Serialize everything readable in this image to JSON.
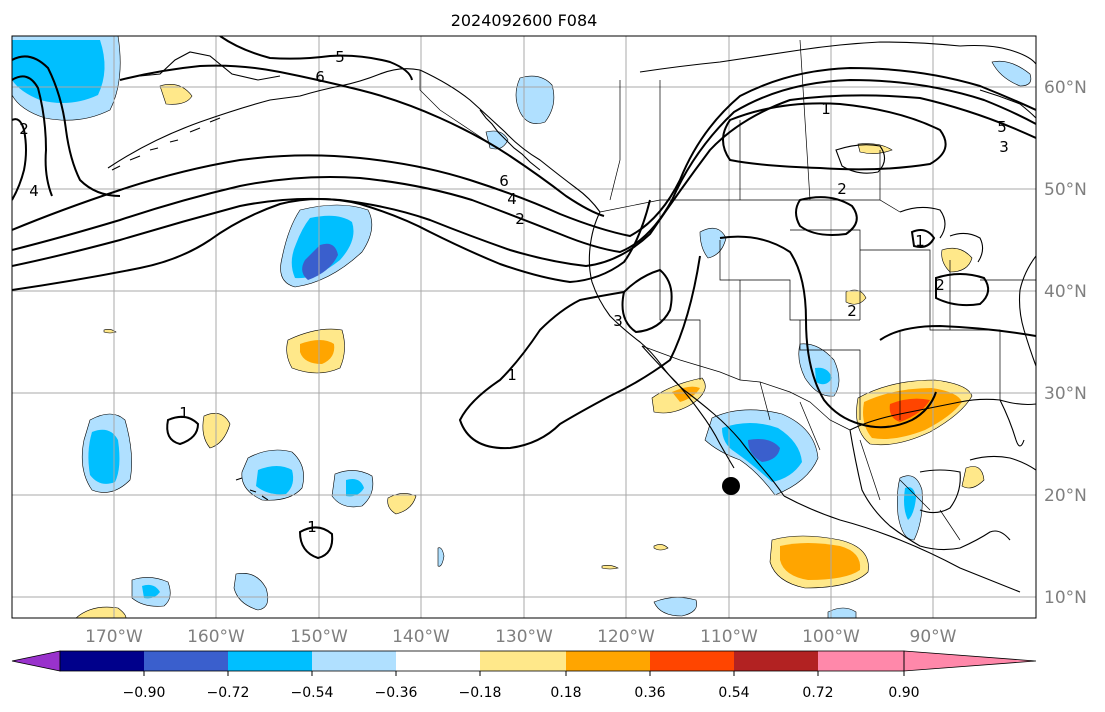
{
  "title": "2024092600 F084",
  "lat_labels": [
    "60°N",
    "50°N",
    "40°N",
    "30°N",
    "20°N",
    "10°N"
  ],
  "lon_labels": [
    "170°W",
    "160°W",
    "150°W",
    "140°W",
    "130°W",
    "120°W",
    "110°W",
    "100°W",
    "90°W"
  ],
  "colorbar": {
    "colors": [
      "#9932cc",
      "#00008b",
      "#3a5fcd",
      "#00bfff",
      "#b0e0ff",
      "#ffffff",
      "#ffe88a",
      "#ffa500",
      "#ff4500",
      "#b22222",
      "#ff88aa"
    ],
    "tick_labels": [
      "−0.90",
      "−0.72",
      "−0.54",
      "−0.36",
      "−0.18",
      "0.18",
      "0.36",
      "0.54",
      "0.72",
      "0.90"
    ]
  },
  "contour_labels": [
    "5",
    "6",
    "2",
    "4",
    "6",
    "4",
    "2",
    "1",
    "5",
    "3",
    "2",
    "1",
    "2",
    "2",
    "3",
    "1",
    "1",
    "1"
  ],
  "marker": {
    "lat": 21,
    "lon": -110
  }
}
